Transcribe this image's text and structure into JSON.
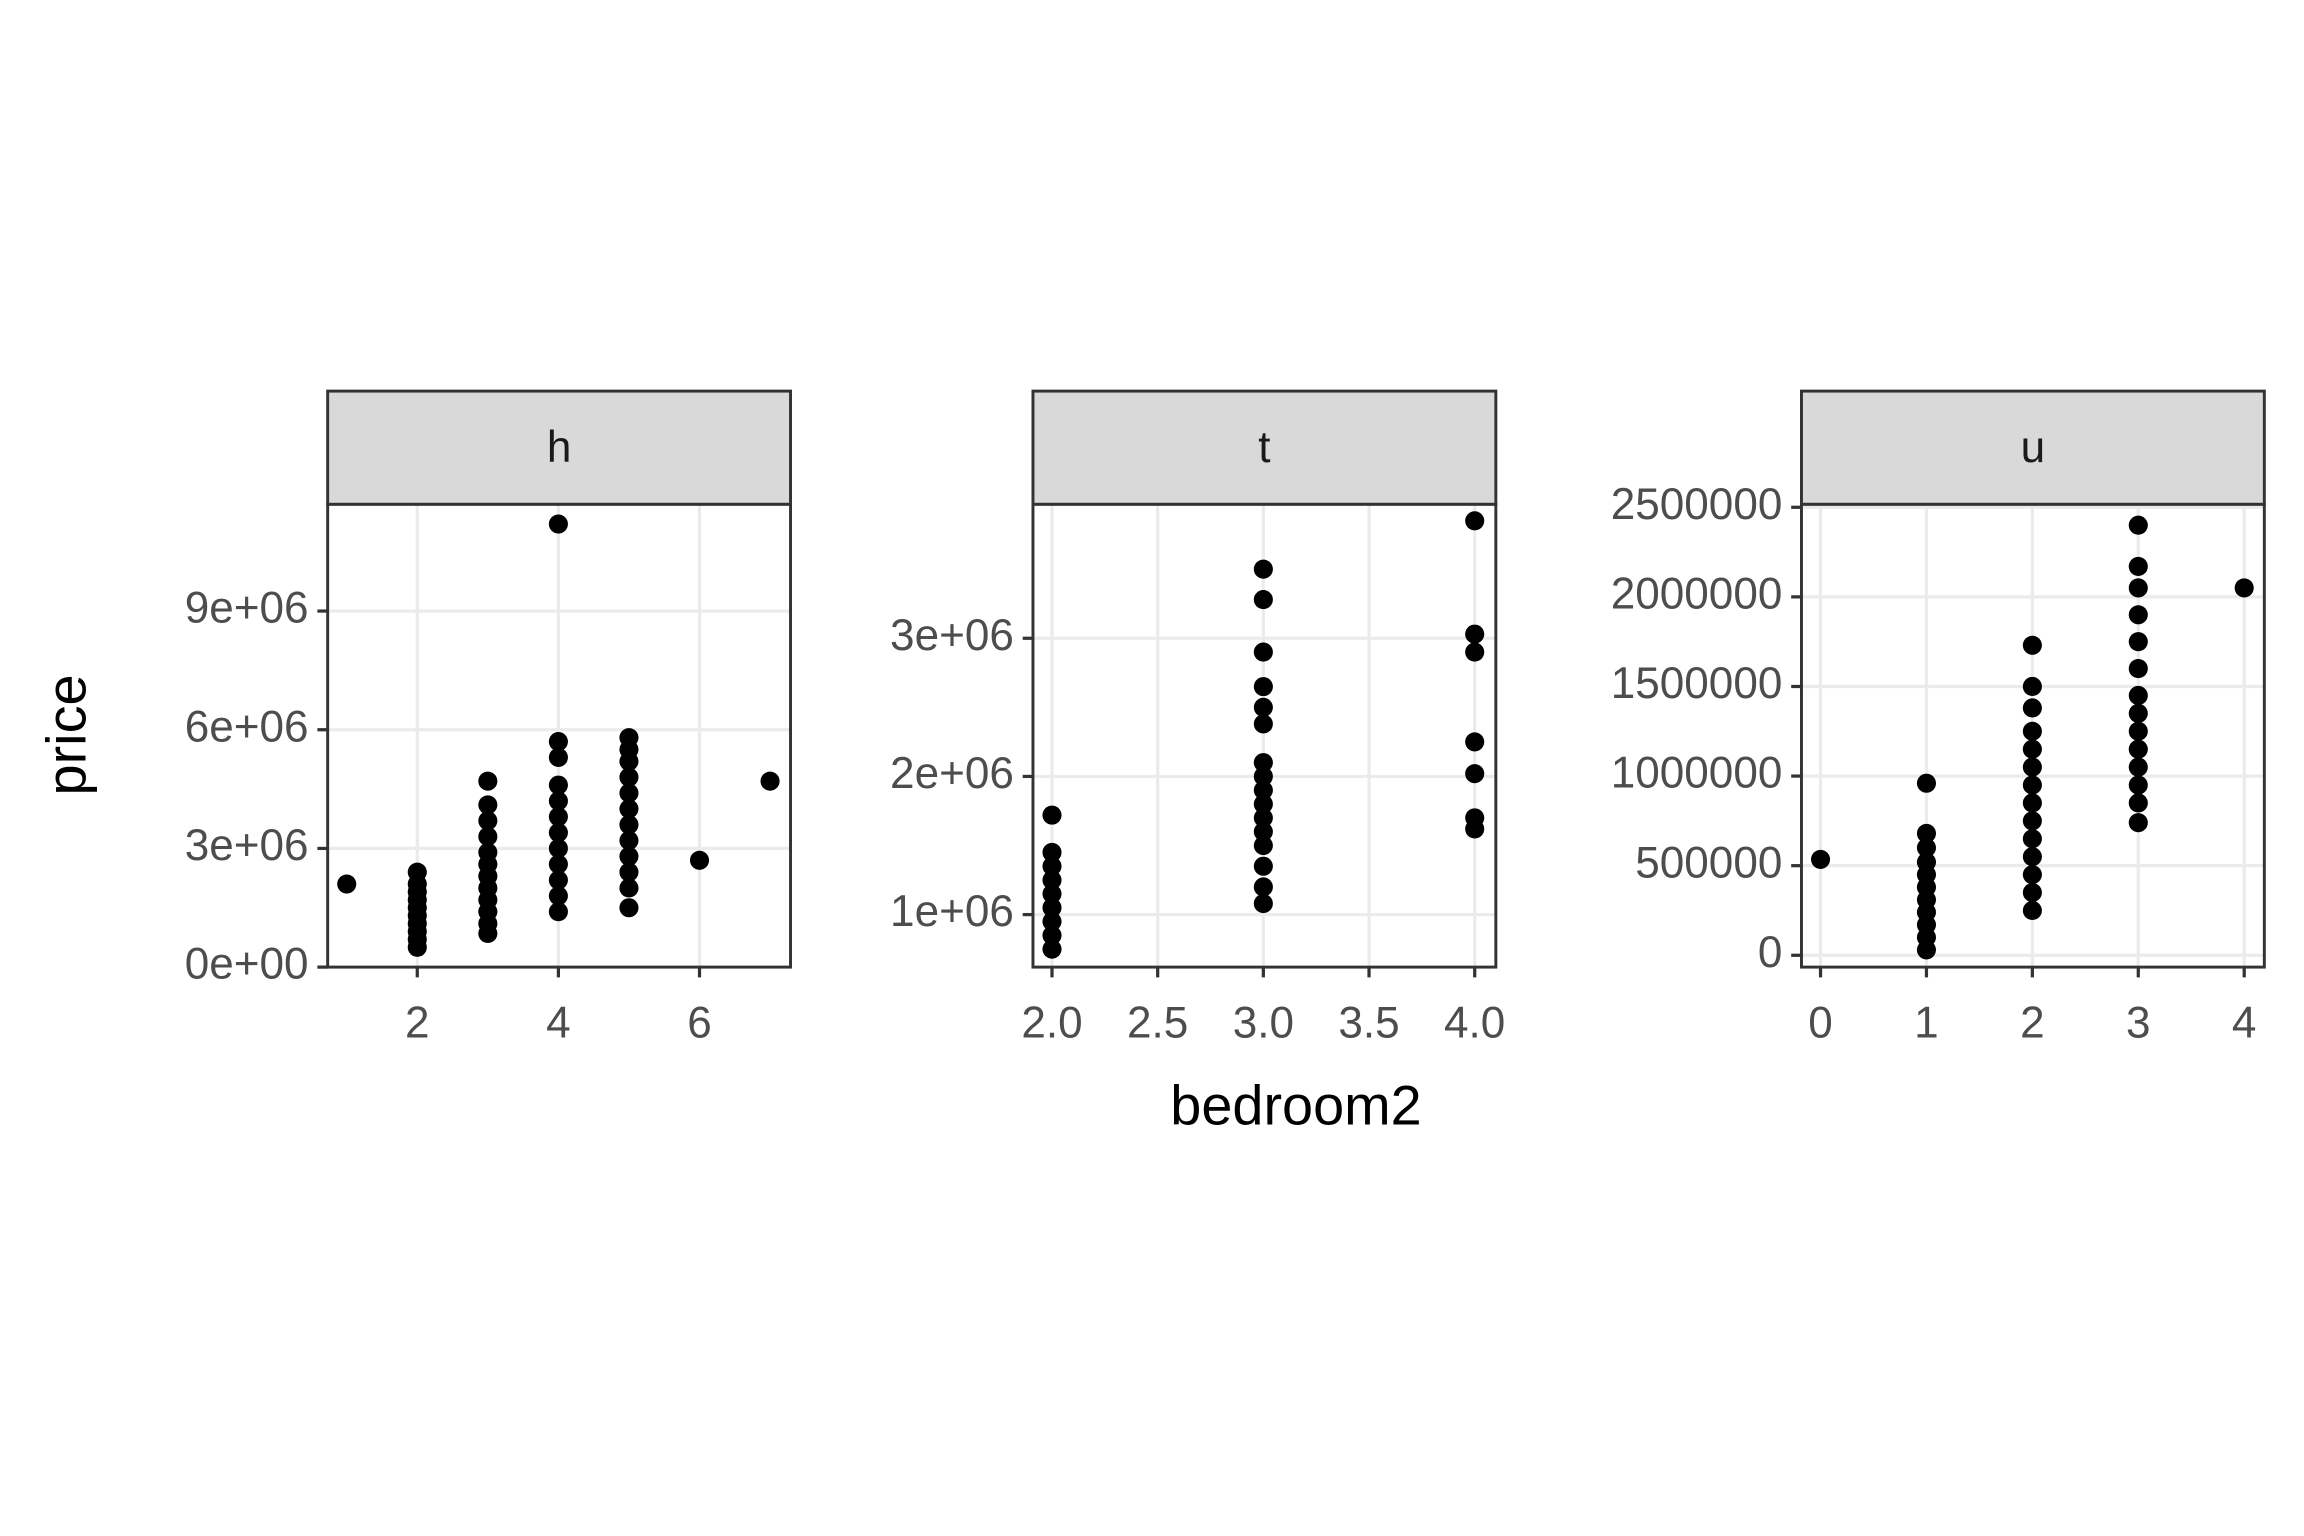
{
  "chart_data": [
    {
      "type": "scatter",
      "title": "h",
      "ylabel": "price",
      "color": "#000000",
      "grid": true,
      "xlim": [
        0.73,
        7.29
      ],
      "ylim": [
        0,
        11700000
      ],
      "xticks": [
        2,
        4,
        6
      ],
      "yticks": [
        {
          "value": 0,
          "label": "0e+00"
        },
        {
          "value": 3000000,
          "label": "3e+06"
        },
        {
          "value": 6000000,
          "label": "6e+06"
        },
        {
          "value": 9000000,
          "label": "9e+06"
        }
      ],
      "x": [
        1,
        2,
        2,
        2,
        2,
        2,
        2,
        2,
        2,
        2,
        2,
        3,
        3,
        3,
        3,
        3,
        3,
        3,
        3,
        3,
        3,
        3,
        3,
        4,
        4,
        4,
        4,
        4,
        4,
        4,
        4,
        4,
        4,
        4,
        4,
        5,
        5,
        5,
        5,
        5,
        5,
        5,
        5,
        5,
        5,
        5,
        5,
        6,
        7
      ],
      "y": [
        2100000,
        500000,
        700000,
        900000,
        1100000,
        1300000,
        1500000,
        1700000,
        1900000,
        2100000,
        2400000,
        850000,
        1100000,
        1400000,
        1700000,
        2000000,
        2300000,
        2600000,
        2900000,
        3300000,
        3700000,
        4100000,
        4700000,
        1400000,
        1800000,
        2200000,
        2600000,
        3000000,
        3400000,
        3800000,
        4200000,
        4600000,
        5300000,
        5700000,
        11200000,
        1500000,
        2000000,
        2400000,
        2800000,
        3200000,
        3600000,
        4000000,
        4400000,
        4800000,
        5200000,
        5500000,
        5800000,
        2700000,
        4700000
      ]
    },
    {
      "type": "scatter",
      "title": "t",
      "xlabel": "bedroom2",
      "color": "#000000",
      "grid": true,
      "xlim": [
        1.91,
        4.1
      ],
      "ylim": [
        620000,
        3970000
      ],
      "xticks": [
        {
          "value": 2,
          "label": "2.0"
        },
        2.5,
        {
          "value": 3,
          "label": "3.0"
        },
        3.5,
        {
          "value": 4,
          "label": "4.0"
        }
      ],
      "yticks": [
        {
          "value": 1000000,
          "label": "1e+06"
        },
        {
          "value": 2000000,
          "label": "2e+06"
        },
        {
          "value": 3000000,
          "label": "3e+06"
        }
      ],
      "x": [
        2,
        2,
        2,
        2,
        2,
        2,
        2,
        2,
        2,
        3,
        3,
        3,
        3,
        3,
        3,
        3,
        3,
        3,
        3,
        3,
        3,
        3,
        3,
        3,
        3,
        4,
        4,
        4,
        4,
        4,
        4,
        4
      ],
      "y": [
        750000,
        850000,
        950000,
        1050000,
        1150000,
        1250000,
        1350000,
        1450000,
        1720000,
        1080000,
        1200000,
        1350000,
        1500000,
        1600000,
        1700000,
        1800000,
        1900000,
        2000000,
        2100000,
        2380000,
        2500000,
        2650000,
        2900000,
        3280000,
        3500000,
        1620000,
        1700000,
        2020000,
        2250000,
        2900000,
        3030000,
        3850000
      ]
    },
    {
      "type": "scatter",
      "title": "u",
      "color": "#000000",
      "grid": true,
      "xlim": [
        -0.18,
        4.19
      ],
      "ylim": [
        -66000,
        2517000
      ],
      "xticks": [
        0,
        1,
        2,
        3,
        4
      ],
      "yticks": [
        0,
        500000,
        1000000,
        1500000,
        2000000,
        2500000
      ],
      "x": [
        0,
        1,
        1,
        1,
        1,
        1,
        1,
        1,
        1,
        1,
        1,
        1,
        2,
        2,
        2,
        2,
        2,
        2,
        2,
        2,
        2,
        2,
        2,
        2,
        2,
        2,
        3,
        3,
        3,
        3,
        3,
        3,
        3,
        3,
        3,
        3,
        3,
        3,
        3,
        3,
        4
      ],
      "y": [
        535000,
        30000,
        100000,
        170000,
        240000,
        310000,
        380000,
        450000,
        520000,
        600000,
        680000,
        960000,
        250000,
        350000,
        450000,
        550000,
        650000,
        750000,
        850000,
        950000,
        1050000,
        1150000,
        1250000,
        1380000,
        1500000,
        1730000,
        740000,
        850000,
        950000,
        1050000,
        1150000,
        1250000,
        1350000,
        1450000,
        1600000,
        1750000,
        1900000,
        2050000,
        2170000,
        2400000,
        2050000
      ]
    }
  ]
}
